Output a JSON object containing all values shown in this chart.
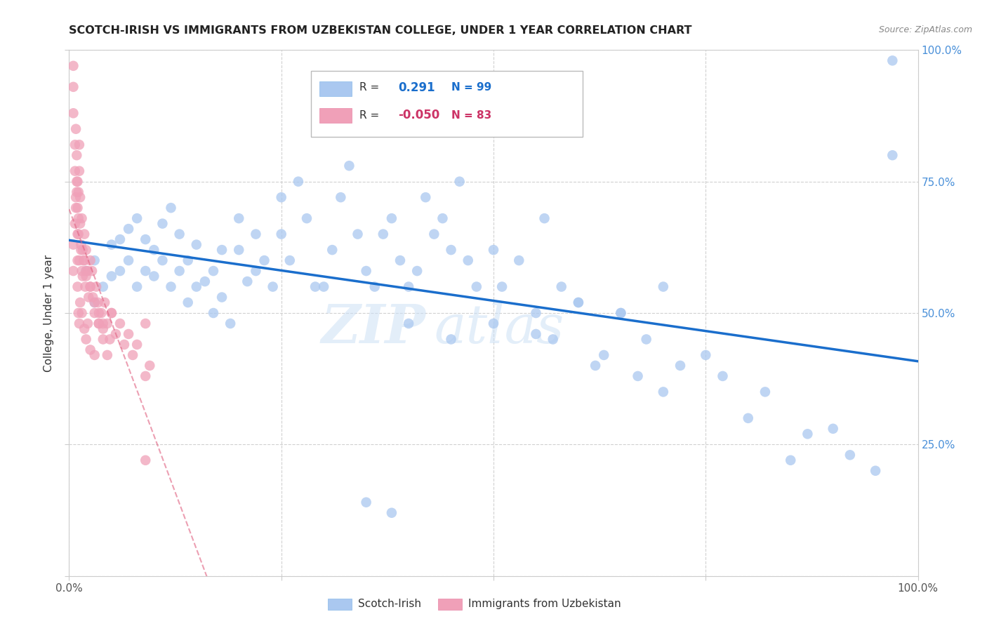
{
  "title": "SCOTCH-IRISH VS IMMIGRANTS FROM UZBEKISTAN COLLEGE, UNDER 1 YEAR CORRELATION CHART",
  "source": "Source: ZipAtlas.com",
  "ylabel": "College, Under 1 year",
  "r_blue": 0.291,
  "n_blue": 99,
  "r_pink": -0.05,
  "n_pink": 83,
  "legend_blue": "Scotch-Irish",
  "legend_pink": "Immigrants from Uzbekistan",
  "blue_color": "#aac8f0",
  "blue_line_color": "#1a6ecc",
  "pink_color": "#f0a0b8",
  "pink_line_color": "#e06080",
  "watermark_zip": "ZIP",
  "watermark_atlas": "atlas",
  "blue_scatter_x": [
    2,
    3,
    3,
    4,
    5,
    5,
    6,
    6,
    7,
    7,
    8,
    8,
    9,
    9,
    10,
    10,
    11,
    11,
    12,
    12,
    13,
    13,
    14,
    14,
    15,
    15,
    16,
    17,
    17,
    18,
    18,
    19,
    20,
    20,
    21,
    22,
    22,
    23,
    24,
    25,
    25,
    26,
    27,
    28,
    29,
    30,
    31,
    32,
    33,
    34,
    35,
    36,
    37,
    38,
    39,
    40,
    41,
    42,
    43,
    44,
    45,
    46,
    47,
    48,
    50,
    51,
    53,
    55,
    56,
    57,
    58,
    60,
    62,
    63,
    65,
    67,
    68,
    70,
    72,
    75,
    77,
    80,
    82,
    85,
    87,
    90,
    92,
    95,
    97,
    35,
    38,
    40,
    45,
    50,
    55,
    60,
    65,
    70,
    97
  ],
  "blue_scatter_y": [
    58,
    52,
    60,
    55,
    57,
    63,
    58,
    64,
    60,
    66,
    55,
    68,
    58,
    64,
    57,
    62,
    60,
    67,
    55,
    70,
    58,
    65,
    52,
    60,
    55,
    63,
    56,
    50,
    58,
    53,
    62,
    48,
    62,
    68,
    56,
    58,
    65,
    60,
    55,
    72,
    65,
    60,
    75,
    68,
    55,
    55,
    62,
    72,
    78,
    65,
    58,
    55,
    65,
    68,
    60,
    55,
    58,
    72,
    65,
    68,
    62,
    75,
    60,
    55,
    62,
    55,
    60,
    50,
    68,
    45,
    55,
    52,
    40,
    42,
    50,
    38,
    45,
    35,
    40,
    42,
    38,
    30,
    35,
    22,
    27,
    28,
    23,
    20,
    98,
    14,
    12,
    48,
    45,
    48,
    46,
    52,
    50,
    55,
    80
  ],
  "pink_scatter_x": [
    0.5,
    0.5,
    0.5,
    0.7,
    0.7,
    0.8,
    0.8,
    0.9,
    0.9,
    1.0,
    1.0,
    1.0,
    1.1,
    1.1,
    1.2,
    1.2,
    1.3,
    1.3,
    1.4,
    1.5,
    1.5,
    1.6,
    1.7,
    1.8,
    1.8,
    1.9,
    2.0,
    2.0,
    2.2,
    2.3,
    2.5,
    2.5,
    2.7,
    2.8,
    3.0,
    3.2,
    3.4,
    3.5,
    3.8,
    4.0,
    4.2,
    4.5,
    4.8,
    5.0,
    5.5,
    6.0,
    6.5,
    7.0,
    7.5,
    8.0,
    9.0,
    9.5,
    1.0,
    1.1,
    1.2,
    1.3,
    1.5,
    1.8,
    2.0,
    2.2,
    2.5,
    3.0,
    3.5,
    4.0,
    4.5,
    5.0,
    9.0,
    0.5,
    0.5,
    0.7,
    0.8,
    0.9,
    1.0,
    1.1,
    1.2,
    1.4,
    1.6,
    2.0,
    2.5,
    3.0,
    3.5,
    4.0,
    9.0
  ],
  "pink_scatter_y": [
    97,
    93,
    88,
    82,
    77,
    72,
    85,
    80,
    75,
    70,
    65,
    60,
    73,
    68,
    82,
    77,
    72,
    67,
    63,
    68,
    58,
    62,
    60,
    65,
    60,
    55,
    62,
    57,
    58,
    53,
    60,
    55,
    58,
    53,
    50,
    55,
    52,
    48,
    50,
    47,
    52,
    48,
    45,
    50,
    46,
    48,
    44,
    46,
    42,
    44,
    38,
    40,
    55,
    50,
    48,
    52,
    50,
    47,
    45,
    48,
    43,
    42,
    48,
    45,
    42,
    50,
    22,
    63,
    58,
    67,
    70,
    73,
    75,
    65,
    60,
    62,
    57,
    58,
    55,
    52,
    50,
    48,
    48
  ]
}
